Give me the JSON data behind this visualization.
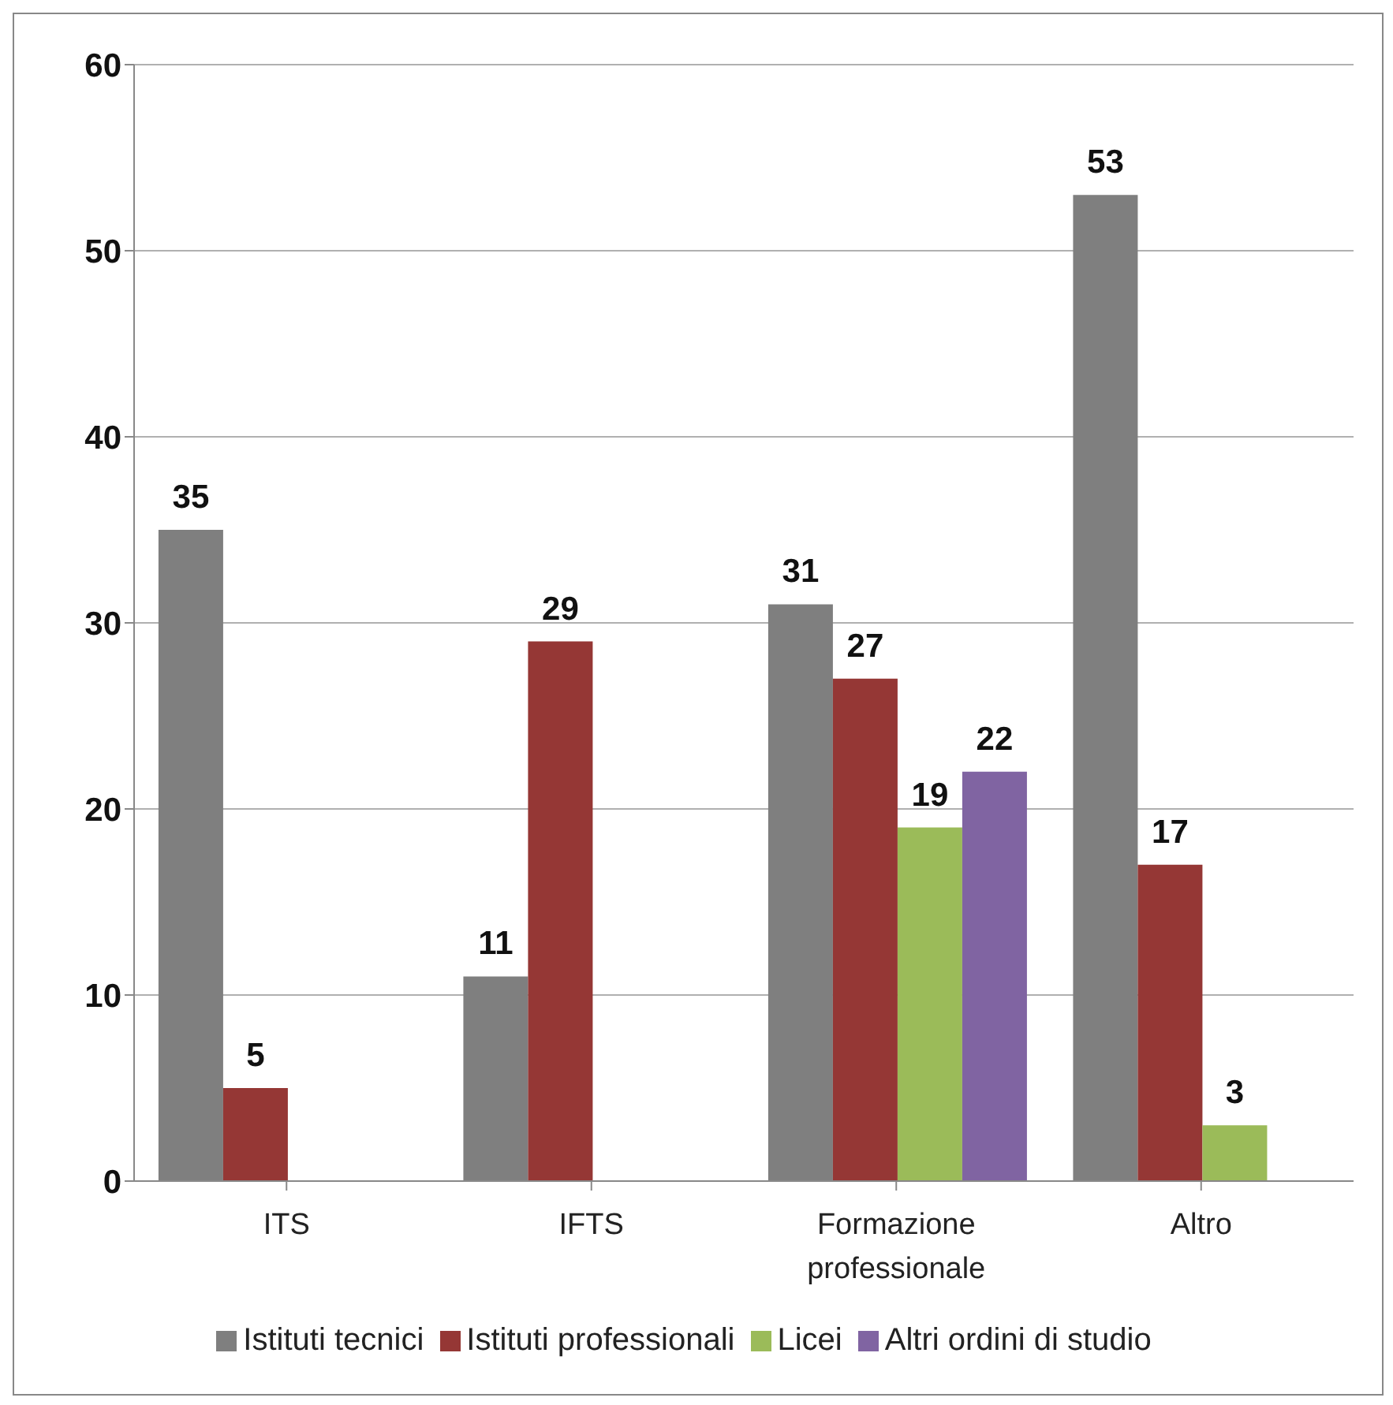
{
  "chart_data": {
    "type": "bar",
    "categories": [
      "ITS",
      "IFTS",
      "Formazione professionale",
      "Altro"
    ],
    "series": [
      {
        "name": "Istituti tecnici",
        "color": "#7f7f7f",
        "values": [
          35,
          11,
          31,
          53
        ]
      },
      {
        "name": "Istituti professionali",
        "color": "#953735",
        "values": [
          5,
          29,
          27,
          17
        ]
      },
      {
        "name": "Licei",
        "color": "#9bbb59",
        "values": [
          null,
          null,
          19,
          3
        ]
      },
      {
        "name": "Altri ordini di studio",
        "color": "#8064a2",
        "values": [
          null,
          null,
          22,
          null
        ]
      }
    ],
    "ylim": [
      0,
      60
    ],
    "yticks": [
      0,
      10,
      20,
      30,
      40,
      50,
      60
    ],
    "grid": "y",
    "legend": "bottom",
    "data_labels": true
  }
}
